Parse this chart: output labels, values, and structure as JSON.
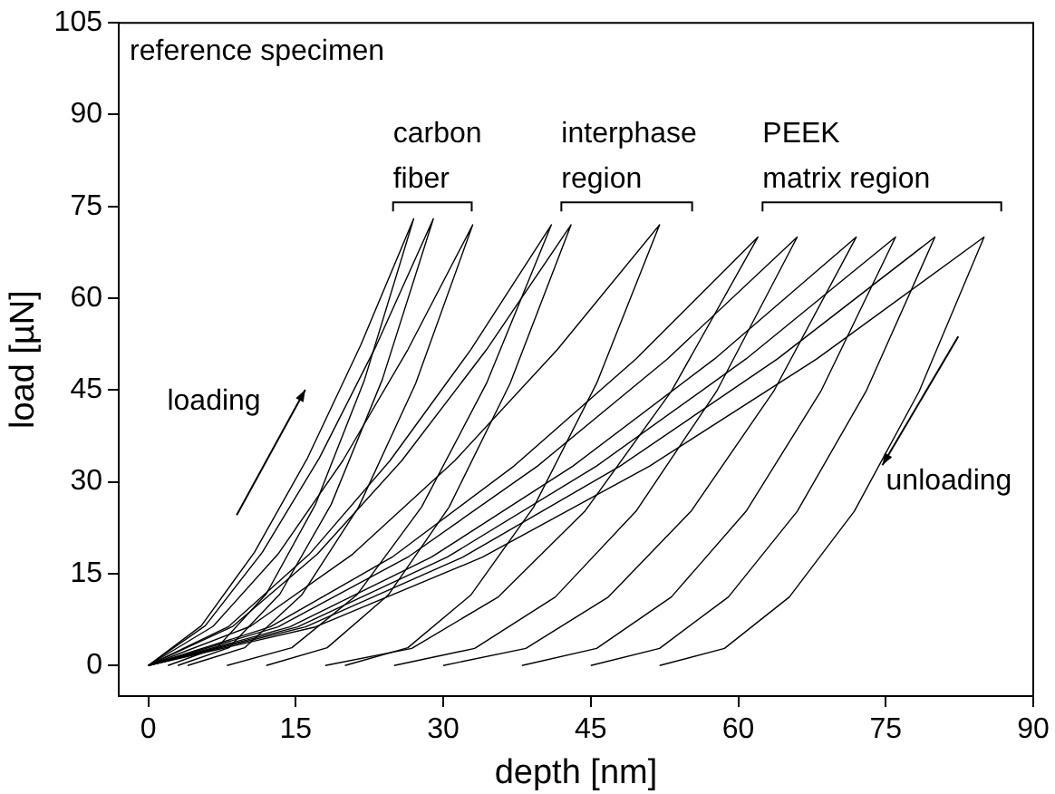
{
  "chart_data": {
    "type": "line",
    "xlabel": "depth [nm]",
    "ylabel": "load [µN]",
    "xlim": [
      -3,
      90
    ],
    "ylim": [
      -5,
      105
    ],
    "xticks": [
      0,
      15,
      30,
      45,
      60,
      75,
      90
    ],
    "yticks": [
      0,
      15,
      30,
      45,
      60,
      75,
      90,
      105
    ],
    "grid": false,
    "legend": false,
    "marker": "none",
    "line_style": "solid",
    "annotations": [
      "reference specimen",
      "carbon fiber",
      "interphase region",
      "PEEK matrix region",
      "loading",
      "unloading"
    ],
    "series": [
      {
        "color": "#000000",
        "x": [
          0,
          5.4,
          10.8,
          16.2,
          21.6,
          27,
          22,
          17,
          12,
          7,
          2
        ],
        "values": [
          0,
          6.5,
          18.5,
          33.9,
          52.3,
          73,
          46.7,
          26.3,
          11.7,
          2.9,
          0
        ]
      },
      {
        "color": "#000000",
        "x": [
          0,
          5.8,
          11.6,
          17.4,
          23.2,
          29,
          23.8,
          18.6,
          13.4,
          8.2,
          3
        ],
        "values": [
          0,
          6.5,
          18.5,
          33.9,
          52.3,
          73,
          46.7,
          26.3,
          11.7,
          2.9,
          0
        ]
      },
      {
        "color": "#000000",
        "x": [
          0,
          6.6,
          13.2,
          19.8,
          26.4,
          33,
          27.2,
          21.4,
          15.6,
          9.8,
          4
        ],
        "values": [
          0,
          6.4,
          18.2,
          33.5,
          51.6,
          72,
          46.1,
          25.9,
          11.5,
          2.9,
          0
        ]
      },
      {
        "color": "#000000",
        "x": [
          0,
          8.2,
          16.4,
          24.6,
          32.8,
          41,
          34.4,
          27.8,
          21.2,
          14.6,
          8
        ],
        "values": [
          0,
          6.4,
          18.2,
          33.5,
          51.6,
          72,
          46.1,
          25.9,
          11.5,
          2.9,
          0
        ]
      },
      {
        "color": "#000000",
        "x": [
          0,
          8.6,
          17.2,
          25.8,
          34.4,
          43,
          36.8,
          30.6,
          24.4,
          18.2,
          12
        ],
        "values": [
          0,
          6.4,
          18.2,
          33.5,
          51.6,
          72,
          46.1,
          25.9,
          11.5,
          2.9,
          0
        ]
      },
      {
        "color": "#000000",
        "x": [
          0,
          10.4,
          20.8,
          31.2,
          41.6,
          52,
          45.6,
          39.2,
          32.8,
          26.4,
          20
        ],
        "values": [
          0,
          6.4,
          18.2,
          33.5,
          51.6,
          72,
          46.1,
          25.9,
          11.5,
          2.9,
          0
        ]
      },
      {
        "color": "#000000",
        "x": [
          0,
          12.4,
          24.8,
          37.2,
          49.6,
          62,
          53.2,
          44.4,
          35.6,
          26.8,
          18
        ],
        "values": [
          0,
          6.3,
          17.7,
          32.6,
          50.1,
          70,
          44.8,
          25.2,
          11.2,
          2.8,
          0
        ]
      },
      {
        "color": "#000000",
        "x": [
          0,
          13.2,
          26.4,
          39.6,
          52.8,
          66,
          57.8,
          49.6,
          41.4,
          33.2,
          25
        ],
        "values": [
          0,
          6.3,
          17.7,
          32.6,
          50.1,
          70,
          44.8,
          25.2,
          11.2,
          2.8,
          0
        ]
      },
      {
        "color": "#000000",
        "x": [
          0,
          14.4,
          28.8,
          43.2,
          57.6,
          72,
          63.6,
          55.2,
          46.8,
          38.4,
          30
        ],
        "values": [
          0,
          6.3,
          17.7,
          32.6,
          50.1,
          70,
          44.8,
          25.2,
          11.2,
          2.8,
          0
        ]
      },
      {
        "color": "#000000",
        "x": [
          0,
          15.2,
          30.4,
          45.6,
          60.8,
          76,
          68.4,
          60.8,
          53.2,
          45.6,
          38
        ],
        "values": [
          0,
          6.3,
          17.7,
          32.6,
          50.1,
          70,
          44.8,
          25.2,
          11.2,
          2.8,
          0
        ]
      },
      {
        "color": "#000000",
        "x": [
          0,
          16,
          32,
          48,
          64,
          80,
          73,
          66,
          59,
          52,
          45
        ],
        "values": [
          0,
          6.3,
          17.7,
          32.6,
          50.1,
          70,
          44.8,
          25.2,
          11.2,
          2.8,
          0
        ]
      },
      {
        "color": "#000000",
        "x": [
          0,
          17,
          34,
          51,
          68,
          85,
          78.4,
          71.8,
          65.2,
          58.6,
          52
        ],
        "values": [
          0,
          6.3,
          17.7,
          32.6,
          50.1,
          70,
          44.8,
          25.2,
          11.2,
          2.8,
          0
        ]
      }
    ]
  }
}
